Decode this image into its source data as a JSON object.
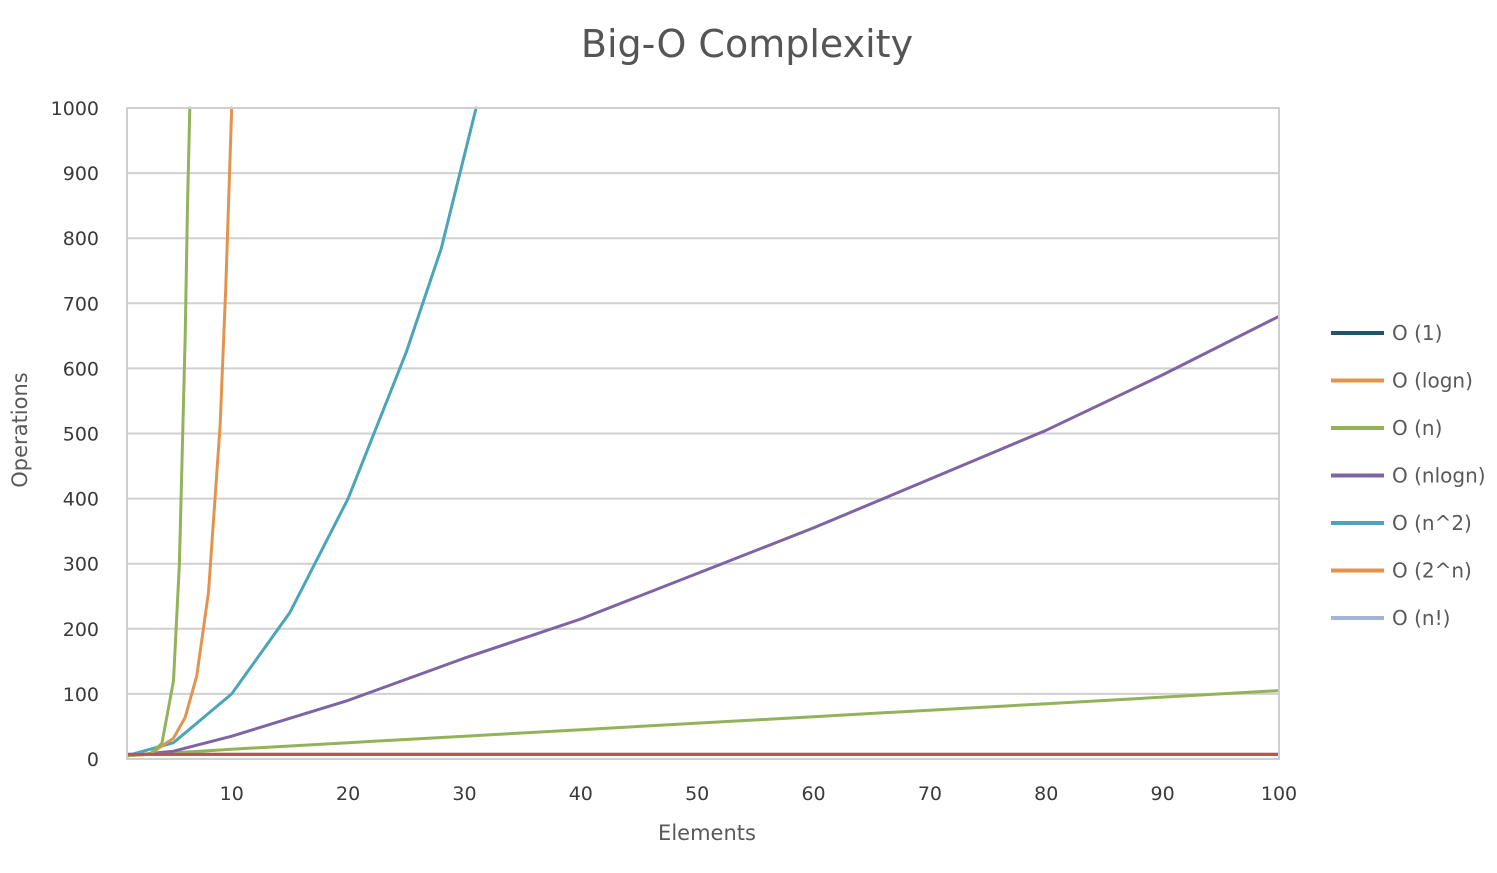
{
  "chart_data": {
    "type": "line",
    "title": "Big-O Complexity",
    "xlabel": "Elements",
    "ylabel": "Operations",
    "xlim": [
      1,
      100
    ],
    "ylim": [
      0,
      1000
    ],
    "x_ticks": [
      10,
      20,
      30,
      40,
      50,
      60,
      70,
      80,
      90,
      100
    ],
    "y_ticks": [
      0,
      100,
      200,
      300,
      400,
      500,
      600,
      700,
      800,
      900,
      1000
    ],
    "grid": true,
    "legend_position": "right",
    "series": [
      {
        "name": "O (1)",
        "color": "#22536a",
        "x": [
          1,
          100
        ],
        "y": [
          7,
          7
        ]
      },
      {
        "name": "O (logn)",
        "color": "#e3944c",
        "x": [
          1,
          2,
          5,
          10,
          20,
          40,
          60,
          80,
          100
        ],
        "y": [
          7,
          7,
          7,
          7,
          7,
          7,
          7,
          7,
          7
        ]
      },
      {
        "name": "O (n)",
        "color": "#92b35a",
        "x": [
          1,
          10,
          20,
          40,
          60,
          80,
          100
        ],
        "y": [
          5,
          15,
          25,
          45,
          65,
          85,
          105
        ]
      },
      {
        "name": "O (nlogn)",
        "color": "#7e64a4",
        "x": [
          1,
          5,
          10,
          20,
          30,
          40,
          50,
          60,
          70,
          80,
          90,
          100
        ],
        "y": [
          5,
          12,
          35,
          90,
          155,
          215,
          285,
          355,
          430,
          505,
          590,
          680
        ]
      },
      {
        "name": "O (n^2)",
        "color": "#4aa5bb",
        "x": [
          1,
          5,
          10,
          15,
          20,
          25,
          28,
          31
        ],
        "y": [
          5,
          25,
          100,
          225,
          400,
          625,
          784,
          1000
        ]
      },
      {
        "name": "O (2^n)",
        "color": "#e3944c",
        "x": [
          1,
          3,
          5,
          6,
          7,
          8,
          9,
          9.5,
          10
        ],
        "y": [
          5,
          8,
          32,
          64,
          128,
          256,
          512,
          730,
          1000
        ]
      },
      {
        "name": "O (n!)",
        "color": "#a2b4d8",
        "x": [
          1,
          100
        ],
        "y": [
          7,
          7
        ]
      },
      {
        "name": "",
        "color": "#92b35a",
        "x": [
          1,
          3,
          4,
          5,
          5.5,
          6,
          6.2,
          6.4
        ],
        "y": [
          5,
          8,
          24,
          120,
          300,
          650,
          850,
          1000
        ]
      },
      {
        "name": "",
        "color": "#c0504d",
        "x": [
          1,
          100
        ],
        "y": [
          7,
          7
        ]
      }
    ]
  }
}
